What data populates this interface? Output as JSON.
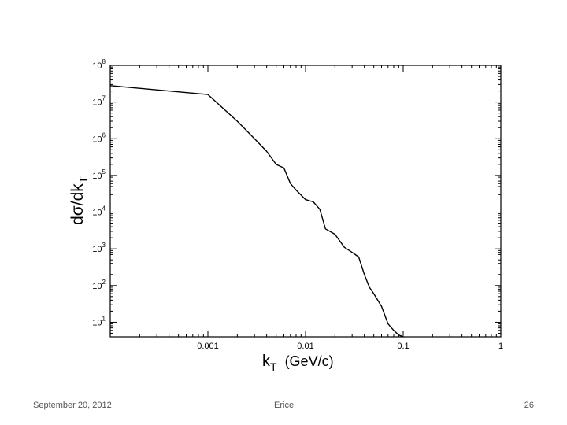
{
  "footer": {
    "date": "September 20, 2012",
    "venue": "Erice",
    "page": "26"
  },
  "chart_data": {
    "type": "line",
    "title": "",
    "xlabel_main": "k",
    "xlabel_sub": "T",
    "xlabel_units": "(GeV/c)",
    "ylabel_main": "dσ/dk",
    "ylabel_sub": "T",
    "xscale": "log",
    "yscale": "log",
    "xlim": [
      0.0001,
      1
    ],
    "ylim": [
      4,
      100000000
    ],
    "grid": false,
    "x_tick_labels": [
      "0.001",
      "0.01",
      "0.1",
      "1"
    ],
    "y_tick_labels": [
      {
        "base": "10",
        "exp": "1"
      },
      {
        "base": "10",
        "exp": "2"
      },
      {
        "base": "10",
        "exp": "3"
      },
      {
        "base": "10",
        "exp": "4"
      },
      {
        "base": "10",
        "exp": "5"
      },
      {
        "base": "10",
        "exp": "6"
      },
      {
        "base": "10",
        "exp": "7"
      },
      {
        "base": "10",
        "exp": "8"
      }
    ],
    "series": [
      {
        "color": "#000000",
        "x": [
          0.0001,
          0.001,
          0.002,
          0.003,
          0.004,
          0.005,
          0.006,
          0.007,
          0.008,
          0.01,
          0.012,
          0.014,
          0.016,
          0.02,
          0.025,
          0.03,
          0.035,
          0.04,
          0.045,
          0.05,
          0.06,
          0.07,
          0.08,
          0.09,
          0.1,
          0.11
        ],
        "y": [
          28000000,
          16000000,
          3000000,
          1000000,
          450000,
          200000,
          160000,
          60000,
          40000,
          22000,
          19000,
          12000,
          3500,
          2500,
          1100,
          800,
          600,
          200,
          90,
          60,
          27,
          9,
          6,
          4.5,
          4,
          3.5
        ]
      }
    ]
  }
}
